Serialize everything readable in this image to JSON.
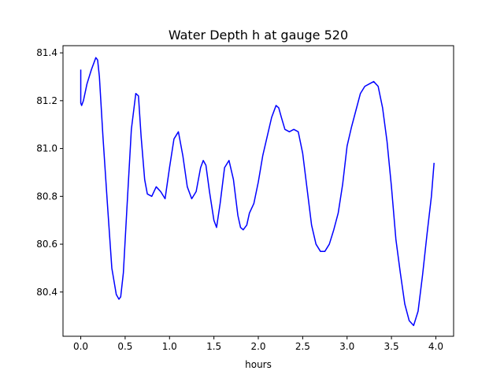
{
  "chart_data": {
    "type": "line",
    "title": "Water Depth h at gauge 520",
    "xlabel": "hours",
    "ylabel": "",
    "xlim": [
      -0.2,
      4.2
    ],
    "ylim": [
      80.215,
      81.43
    ],
    "xticks": [
      0.0,
      0.5,
      1.0,
      1.5,
      2.0,
      2.5,
      3.0,
      3.5,
      4.0
    ],
    "xtick_labels": [
      "0.0",
      "0.5",
      "1.0",
      "1.5",
      "2.0",
      "2.5",
      "3.0",
      "3.5",
      "4.0"
    ],
    "yticks": [
      80.4,
      80.6,
      80.8,
      81.0,
      81.2,
      81.4
    ],
    "ytick_labels": [
      "80.4",
      "80.6",
      "80.8",
      "81.0",
      "81.2",
      "81.4"
    ],
    "grid": false,
    "series": [
      {
        "color": "#0000ff",
        "x": [
          0.0,
          0.0,
          0.01,
          0.03,
          0.07,
          0.12,
          0.17,
          0.19,
          0.21,
          0.25,
          0.3,
          0.35,
          0.4,
          0.43,
          0.45,
          0.48,
          0.52,
          0.57,
          0.62,
          0.65,
          0.68,
          0.72,
          0.75,
          0.8,
          0.85,
          0.9,
          0.95,
          1.0,
          1.05,
          1.1,
          1.15,
          1.2,
          1.25,
          1.3,
          1.35,
          1.38,
          1.41,
          1.45,
          1.5,
          1.53,
          1.57,
          1.62,
          1.67,
          1.72,
          1.77,
          1.8,
          1.83,
          1.87,
          1.9,
          1.95,
          2.0,
          2.05,
          2.1,
          2.15,
          2.2,
          2.23,
          2.26,
          2.3,
          2.35,
          2.4,
          2.45,
          2.5,
          2.55,
          2.6,
          2.65,
          2.7,
          2.75,
          2.8,
          2.85,
          2.9,
          2.95,
          3.0,
          3.05,
          3.1,
          3.15,
          3.2,
          3.25,
          3.3,
          3.35,
          3.4,
          3.45,
          3.5,
          3.55,
          3.6,
          3.65,
          3.7,
          3.75,
          3.8,
          3.85,
          3.9,
          3.95,
          3.98
        ],
        "y": [
          81.33,
          81.19,
          81.18,
          81.2,
          81.27,
          81.33,
          81.38,
          81.37,
          81.3,
          81.05,
          80.77,
          80.5,
          80.39,
          80.37,
          80.38,
          80.48,
          80.75,
          81.08,
          81.23,
          81.22,
          81.05,
          80.87,
          80.81,
          80.8,
          80.84,
          80.82,
          80.79,
          80.92,
          81.04,
          81.07,
          80.97,
          80.84,
          80.79,
          80.82,
          80.92,
          80.95,
          80.93,
          80.82,
          80.7,
          80.67,
          80.77,
          80.92,
          80.95,
          80.87,
          80.72,
          80.67,
          80.66,
          80.68,
          80.73,
          80.77,
          80.86,
          80.97,
          81.05,
          81.13,
          81.18,
          81.17,
          81.13,
          81.08,
          81.07,
          81.08,
          81.07,
          80.98,
          80.83,
          80.68,
          80.6,
          80.57,
          80.57,
          80.6,
          80.66,
          80.73,
          80.85,
          81.01,
          81.09,
          81.16,
          81.23,
          81.26,
          81.27,
          81.28,
          81.26,
          81.17,
          81.03,
          80.84,
          80.62,
          80.48,
          80.35,
          80.28,
          80.26,
          80.32,
          80.47,
          80.64,
          80.8,
          80.94
        ]
      }
    ]
  }
}
